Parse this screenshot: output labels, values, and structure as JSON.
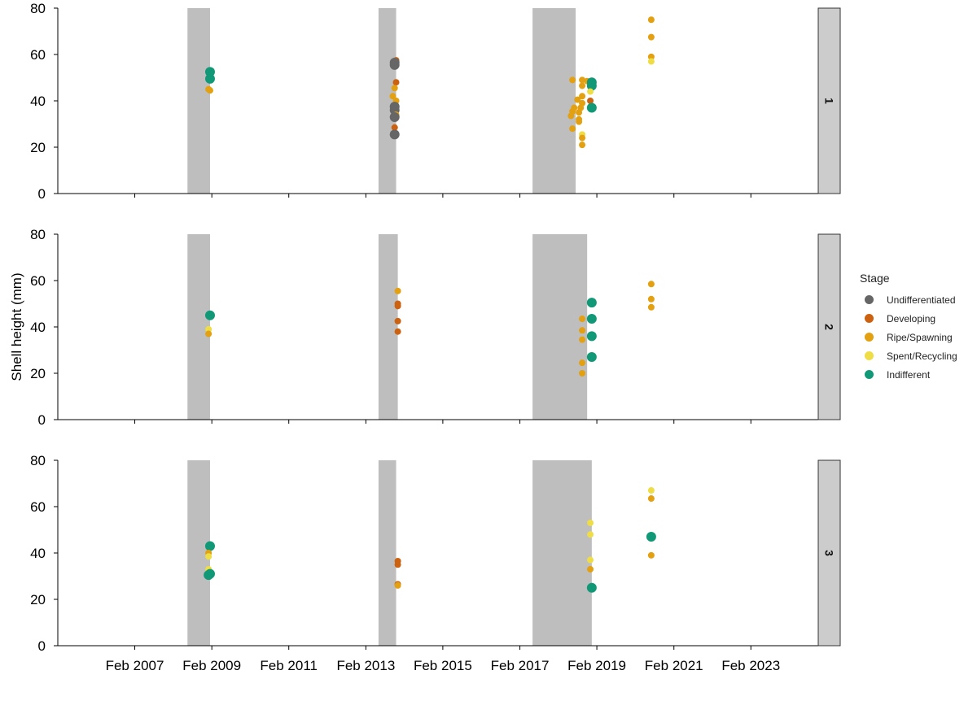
{
  "chart_data": {
    "type": "scatter",
    "ylabel": "Shell height (mm)",
    "ylim": [
      0,
      80
    ],
    "y_ticks": [
      "0",
      "20",
      "40",
      "60",
      "80"
    ],
    "x_ticks": [
      "Feb 2007",
      "Feb 2009",
      "Feb 2011",
      "Feb 2013",
      "Feb 2015",
      "Feb 2017",
      "Feb 2019",
      "Feb 2021",
      "Feb 2023"
    ],
    "x_tick_dates": [
      "2007-02-01",
      "2009-02-01",
      "2011-02-01",
      "2013-02-01",
      "2015-02-01",
      "2017-02-01",
      "2019-02-01",
      "2021-02-01",
      "2023-02-01"
    ],
    "xlim": [
      "2005-02-01",
      "2024-11-01"
    ],
    "legend": {
      "title": "Stage",
      "placement": "right",
      "entries": [
        {
          "name": "Undifferentiated",
          "color": "#666666"
        },
        {
          "name": "Developing",
          "color": "#cc6110"
        },
        {
          "name": "Ripe/Spawning",
          "color": "#e3a010"
        },
        {
          "name": "Spent/Recycling",
          "color": "#eedd44"
        },
        {
          "name": "Indifferent",
          "color": "#119977"
        }
      ]
    },
    "shade_color": "#bebebe",
    "panels": [
      {
        "label": "1",
        "shaded_periods": [
          [
            "2008-06-15",
            "2009-01-15"
          ],
          [
            "2013-06-01",
            "2013-11-15"
          ],
          [
            "2017-06-01",
            "2018-07-15"
          ]
        ],
        "points": [
          {
            "x": "2009-01-15",
            "y": 52.5,
            "stage": "Indifferent"
          },
          {
            "x": "2009-01-15",
            "y": 49.5,
            "stage": "Indifferent"
          },
          {
            "x": "2009-01-01",
            "y": 45,
            "stage": "Ripe/Spawning"
          },
          {
            "x": "2009-01-15",
            "y": 44.5,
            "stage": "Ripe/Spawning"
          },
          {
            "x": "2013-11-15",
            "y": 57.5,
            "stage": "Developing"
          },
          {
            "x": "2013-11-01",
            "y": 56.5,
            "stage": "Undifferentiated"
          },
          {
            "x": "2013-11-01",
            "y": 55.5,
            "stage": "Undifferentiated"
          },
          {
            "x": "2013-11-15",
            "y": 48,
            "stage": "Developing"
          },
          {
            "x": "2013-11-01",
            "y": 45.5,
            "stage": "Ripe/Spawning"
          },
          {
            "x": "2013-10-15",
            "y": 42,
            "stage": "Ripe/Spawning"
          },
          {
            "x": "2013-11-15",
            "y": 40,
            "stage": "Ripe/Spawning"
          },
          {
            "x": "2013-11-01",
            "y": 37.5,
            "stage": "Undifferentiated"
          },
          {
            "x": "2013-11-01",
            "y": 36,
            "stage": "Undifferentiated"
          },
          {
            "x": "2013-11-15",
            "y": 34,
            "stage": "Ripe/Spawning"
          },
          {
            "x": "2013-11-01",
            "y": 33,
            "stage": "Undifferentiated"
          },
          {
            "x": "2013-11-01",
            "y": 28.5,
            "stage": "Developing"
          },
          {
            "x": "2013-11-01",
            "y": 25.5,
            "stage": "Undifferentiated"
          },
          {
            "x": "2018-06-15",
            "y": 49,
            "stage": "Ripe/Spawning"
          },
          {
            "x": "2018-09-15",
            "y": 49,
            "stage": "Ripe/Spawning"
          },
          {
            "x": "2018-11-01",
            "y": 48.5,
            "stage": "Ripe/Spawning"
          },
          {
            "x": "2018-09-15",
            "y": 46.5,
            "stage": "Ripe/Spawning"
          },
          {
            "x": "2018-12-15",
            "y": 48,
            "stage": "Indifferent"
          },
          {
            "x": "2018-12-15",
            "y": 46.5,
            "stage": "Indifferent"
          },
          {
            "x": "2018-12-01",
            "y": 44,
            "stage": "Spent/Recycling"
          },
          {
            "x": "2018-09-15",
            "y": 42,
            "stage": "Ripe/Spawning"
          },
          {
            "x": "2018-08-01",
            "y": 40.5,
            "stage": "Ripe/Spawning"
          },
          {
            "x": "2018-12-01",
            "y": 40,
            "stage": "Developing"
          },
          {
            "x": "2018-09-15",
            "y": 39,
            "stage": "Ripe/Spawning"
          },
          {
            "x": "2018-07-01",
            "y": 37,
            "stage": "Ripe/Spawning"
          },
          {
            "x": "2018-09-01",
            "y": 37,
            "stage": "Ripe/Spawning"
          },
          {
            "x": "2018-06-15",
            "y": 35.5,
            "stage": "Ripe/Spawning"
          },
          {
            "x": "2018-08-15",
            "y": 35,
            "stage": "Ripe/Spawning"
          },
          {
            "x": "2018-12-15",
            "y": 37,
            "stage": "Indifferent"
          },
          {
            "x": "2018-06-01",
            "y": 33.5,
            "stage": "Ripe/Spawning"
          },
          {
            "x": "2018-08-15",
            "y": 32,
            "stage": "Ripe/Spawning"
          },
          {
            "x": "2018-08-15",
            "y": 31,
            "stage": "Ripe/Spawning"
          },
          {
            "x": "2018-06-15",
            "y": 28,
            "stage": "Ripe/Spawning"
          },
          {
            "x": "2018-09-15",
            "y": 25.5,
            "stage": "Spent/Recycling"
          },
          {
            "x": "2018-09-15",
            "y": 24,
            "stage": "Ripe/Spawning"
          },
          {
            "x": "2018-09-15",
            "y": 21,
            "stage": "Ripe/Spawning"
          },
          {
            "x": "2020-07-01",
            "y": 75,
            "stage": "Ripe/Spawning"
          },
          {
            "x": "2020-07-01",
            "y": 67.5,
            "stage": "Ripe/Spawning"
          },
          {
            "x": "2020-07-01",
            "y": 59,
            "stage": "Ripe/Spawning"
          },
          {
            "x": "2020-07-01",
            "y": 57,
            "stage": "Spent/Recycling"
          }
        ]
      },
      {
        "label": "2",
        "shaded_periods": [
          [
            "2008-06-15",
            "2009-01-15"
          ],
          [
            "2013-06-01",
            "2013-12-01"
          ],
          [
            "2017-06-01",
            "2018-11-01"
          ]
        ],
        "points": [
          {
            "x": "2009-01-15",
            "y": 45,
            "stage": "Indifferent"
          },
          {
            "x": "2009-01-01",
            "y": 39,
            "stage": "Spent/Recycling"
          },
          {
            "x": "2009-01-01",
            "y": 37,
            "stage": "Ripe/Spawning"
          },
          {
            "x": "2013-12-01",
            "y": 55.5,
            "stage": "Ripe/Spawning"
          },
          {
            "x": "2013-12-01",
            "y": 50,
            "stage": "Developing"
          },
          {
            "x": "2013-12-01",
            "y": 49,
            "stage": "Developing"
          },
          {
            "x": "2013-12-01",
            "y": 42.5,
            "stage": "Developing"
          },
          {
            "x": "2013-12-01",
            "y": 38,
            "stage": "Developing"
          },
          {
            "x": "2018-09-15",
            "y": 43.5,
            "stage": "Ripe/Spawning"
          },
          {
            "x": "2018-09-15",
            "y": 38.5,
            "stage": "Ripe/Spawning"
          },
          {
            "x": "2018-09-15",
            "y": 34.5,
            "stage": "Ripe/Spawning"
          },
          {
            "x": "2018-09-15",
            "y": 24.5,
            "stage": "Ripe/Spawning"
          },
          {
            "x": "2018-09-15",
            "y": 20,
            "stage": "Ripe/Spawning"
          },
          {
            "x": "2018-12-15",
            "y": 50.5,
            "stage": "Indifferent"
          },
          {
            "x": "2018-12-15",
            "y": 43.5,
            "stage": "Indifferent"
          },
          {
            "x": "2018-12-15",
            "y": 36,
            "stage": "Indifferent"
          },
          {
            "x": "2018-12-15",
            "y": 27,
            "stage": "Indifferent"
          },
          {
            "x": "2020-07-01",
            "y": 58.5,
            "stage": "Ripe/Spawning"
          },
          {
            "x": "2020-07-01",
            "y": 52,
            "stage": "Ripe/Spawning"
          },
          {
            "x": "2020-07-01",
            "y": 48.5,
            "stage": "Ripe/Spawning"
          }
        ]
      },
      {
        "label": "3",
        "shaded_periods": [
          [
            "2008-06-15",
            "2009-01-15"
          ],
          [
            "2013-06-01",
            "2013-11-15"
          ],
          [
            "2017-06-01",
            "2018-12-15"
          ]
        ],
        "points": [
          {
            "x": "2009-01-15",
            "y": 43,
            "stage": "Indifferent"
          },
          {
            "x": "2009-01-01",
            "y": 40,
            "stage": "Ripe/Spawning"
          },
          {
            "x": "2009-01-01",
            "y": 38.5,
            "stage": "Spent/Recycling"
          },
          {
            "x": "2009-01-01",
            "y": 33,
            "stage": "Spent/Recycling"
          },
          {
            "x": "2009-01-15",
            "y": 31,
            "stage": "Indifferent"
          },
          {
            "x": "2009-01-01",
            "y": 30.5,
            "stage": "Indifferent"
          },
          {
            "x": "2013-12-01",
            "y": 36.5,
            "stage": "Developing"
          },
          {
            "x": "2013-12-01",
            "y": 35,
            "stage": "Developing"
          },
          {
            "x": "2013-12-01",
            "y": 26.5,
            "stage": "Developing"
          },
          {
            "x": "2013-12-01",
            "y": 26,
            "stage": "Ripe/Spawning"
          },
          {
            "x": "2018-12-01",
            "y": 53,
            "stage": "Spent/Recycling"
          },
          {
            "x": "2018-12-01",
            "y": 48,
            "stage": "Spent/Recycling"
          },
          {
            "x": "2018-12-01",
            "y": 37,
            "stage": "Spent/Recycling"
          },
          {
            "x": "2018-12-01",
            "y": 33,
            "stage": "Ripe/Spawning"
          },
          {
            "x": "2018-12-15",
            "y": 25,
            "stage": "Indifferent"
          },
          {
            "x": "2020-07-01",
            "y": 67,
            "stage": "Spent/Recycling"
          },
          {
            "x": "2020-07-01",
            "y": 63.5,
            "stage": "Ripe/Spawning"
          },
          {
            "x": "2020-07-01",
            "y": 47,
            "stage": "Indifferent"
          },
          {
            "x": "2020-07-01",
            "y": 39,
            "stage": "Ripe/Spawning"
          }
        ]
      }
    ]
  }
}
